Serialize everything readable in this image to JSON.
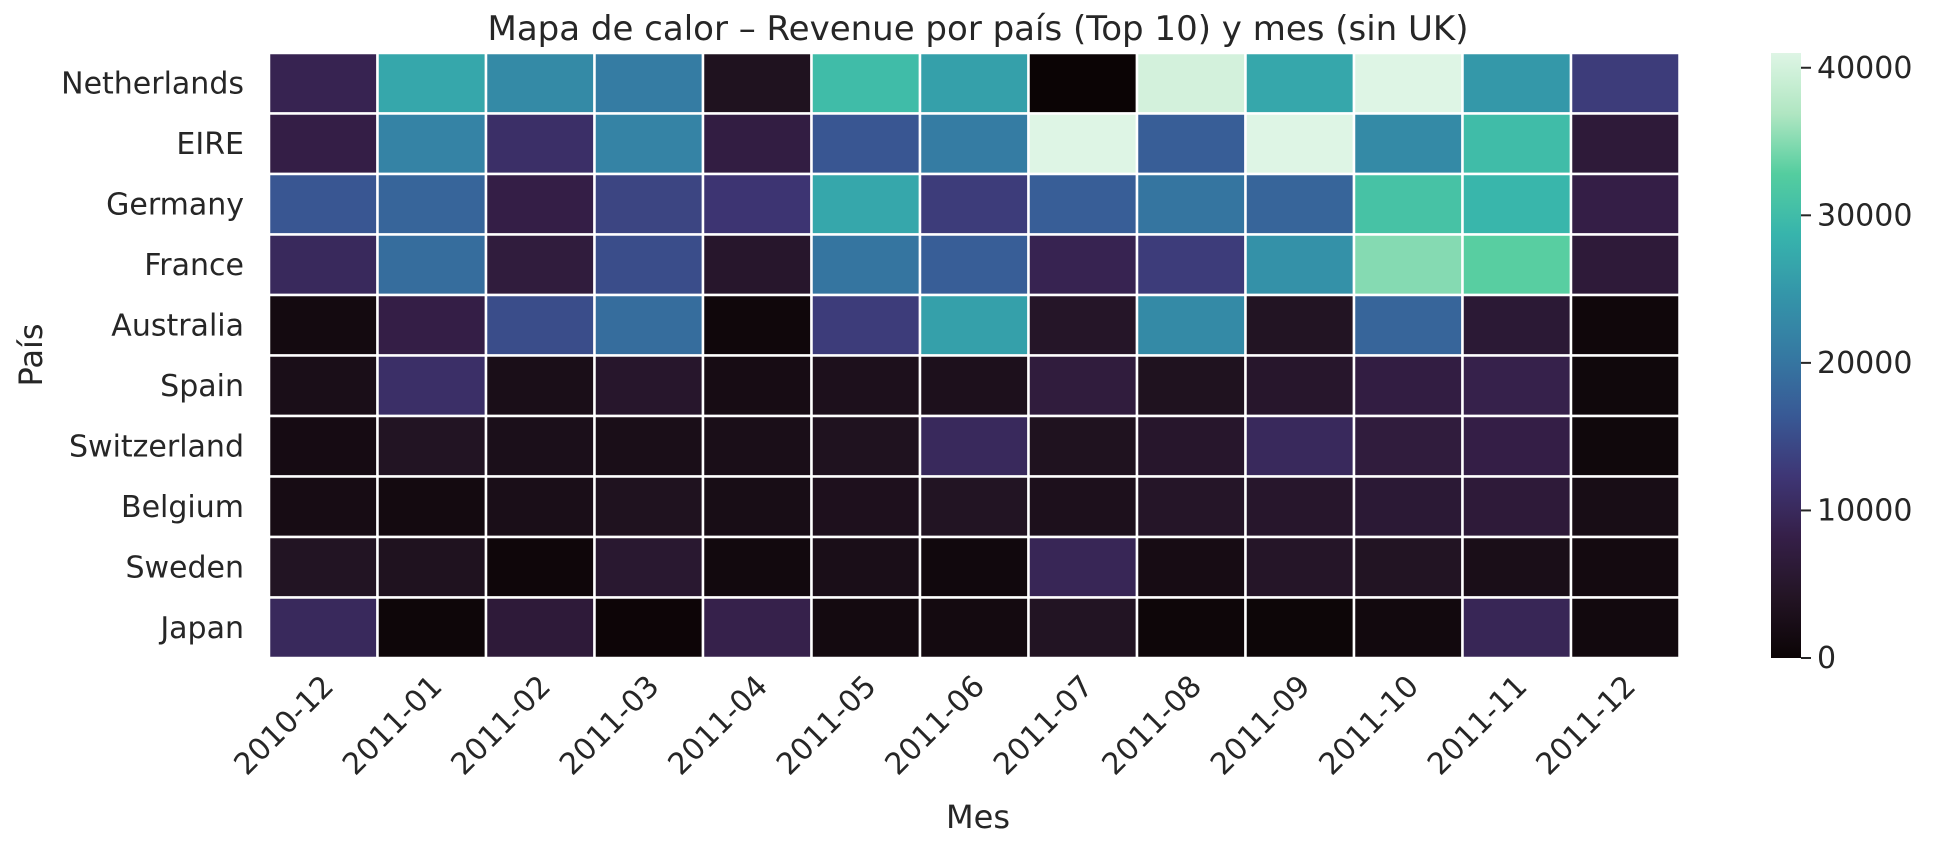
{
  "chart_data": {
    "type": "heatmap",
    "title": "Mapa de calor – Revenue por país (Top 10) y mes (sin UK)",
    "xlabel": "Mes",
    "ylabel": "País",
    "x": [
      "2010-12",
      "2011-01",
      "2011-02",
      "2011-03",
      "2011-04",
      "2011-05",
      "2011-06",
      "2011-07",
      "2011-08",
      "2011-09",
      "2011-10",
      "2011-11",
      "2011-12"
    ],
    "y": [
      "Netherlands",
      "EIRE",
      "Germany",
      "France",
      "Australia",
      "Spain",
      "Switzerland",
      "Belgium",
      "Sweden",
      "Japan"
    ],
    "values": [
      [
        9000,
        27000,
        23000,
        21000,
        3500,
        30000,
        26000,
        0,
        40000,
        27000,
        41000,
        25000,
        13000
      ],
      [
        8000,
        22000,
        11000,
        22000,
        7500,
        16000,
        21000,
        41000,
        17000,
        41000,
        23000,
        30000,
        6500
      ],
      [
        16000,
        18000,
        8000,
        14000,
        12000,
        27000,
        13000,
        17000,
        20000,
        18000,
        31000,
        29000,
        8000
      ],
      [
        10000,
        19000,
        7000,
        15000,
        5000,
        20000,
        17000,
        9000,
        13000,
        24000,
        35000,
        33000,
        6500
      ],
      [
        1500,
        8000,
        15000,
        19000,
        800,
        13000,
        26000,
        4500,
        23000,
        4000,
        18000,
        6000,
        800
      ],
      [
        2500,
        11000,
        2500,
        5000,
        2000,
        3000,
        3000,
        7000,
        3500,
        5000,
        7500,
        8500,
        900
      ],
      [
        1800,
        4000,
        2800,
        2500,
        2500,
        3500,
        10000,
        3500,
        5000,
        10000,
        7000,
        8000,
        900
      ],
      [
        2000,
        1500,
        2500,
        3500,
        2300,
        3200,
        4000,
        3000,
        4500,
        5000,
        6000,
        6500,
        2200
      ],
      [
        4000,
        3500,
        600,
        5500,
        1200,
        2500,
        1000,
        9500,
        2000,
        4500,
        4000,
        2500,
        1500
      ],
      [
        10000,
        500,
        6500,
        300,
        8500,
        1500,
        1500,
        4000,
        500,
        400,
        1200,
        9500,
        1200
      ]
    ],
    "colorbar": {
      "min": 0,
      "max": 41000,
      "ticks": [
        0,
        10000,
        20000,
        30000,
        40000
      ]
    },
    "colormap": "mako",
    "grid": false
  }
}
